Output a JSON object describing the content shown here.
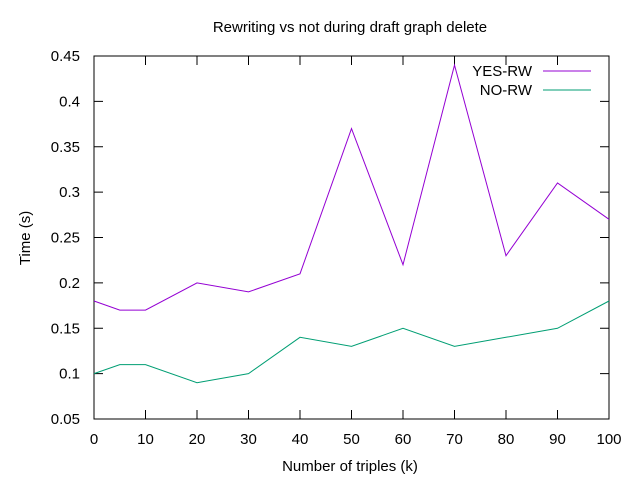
{
  "chart_data": {
    "type": "line",
    "title": "Rewriting vs not during draft graph delete",
    "xlabel": "Number of triples (k)",
    "ylabel": "Time (s)",
    "xlim": [
      0,
      100
    ],
    "ylim": [
      0.05,
      0.45
    ],
    "x_ticks": [
      "0",
      "10",
      "20",
      "30",
      "40",
      "50",
      "60",
      "70",
      "80",
      "90",
      "100"
    ],
    "y_ticks": [
      "0.05",
      "0.1",
      "0.15",
      "0.2",
      "0.25",
      "0.3",
      "0.35",
      "0.4",
      "0.45"
    ],
    "grid": false,
    "legend_position": "top-right",
    "x": [
      0,
      5,
      10,
      20,
      30,
      40,
      50,
      60,
      70,
      80,
      90,
      100
    ],
    "series": [
      {
        "name": "YES-RW",
        "color": "#9400d3",
        "values": [
          0.18,
          0.17,
          0.17,
          0.2,
          0.19,
          0.21,
          0.37,
          0.22,
          0.44,
          0.23,
          0.31,
          0.27
        ]
      },
      {
        "name": "NO-RW",
        "color": "#009e73",
        "values": [
          0.1,
          0.11,
          0.11,
          0.09,
          0.1,
          0.14,
          0.13,
          0.15,
          0.13,
          0.14,
          0.15,
          0.18
        ]
      }
    ]
  }
}
